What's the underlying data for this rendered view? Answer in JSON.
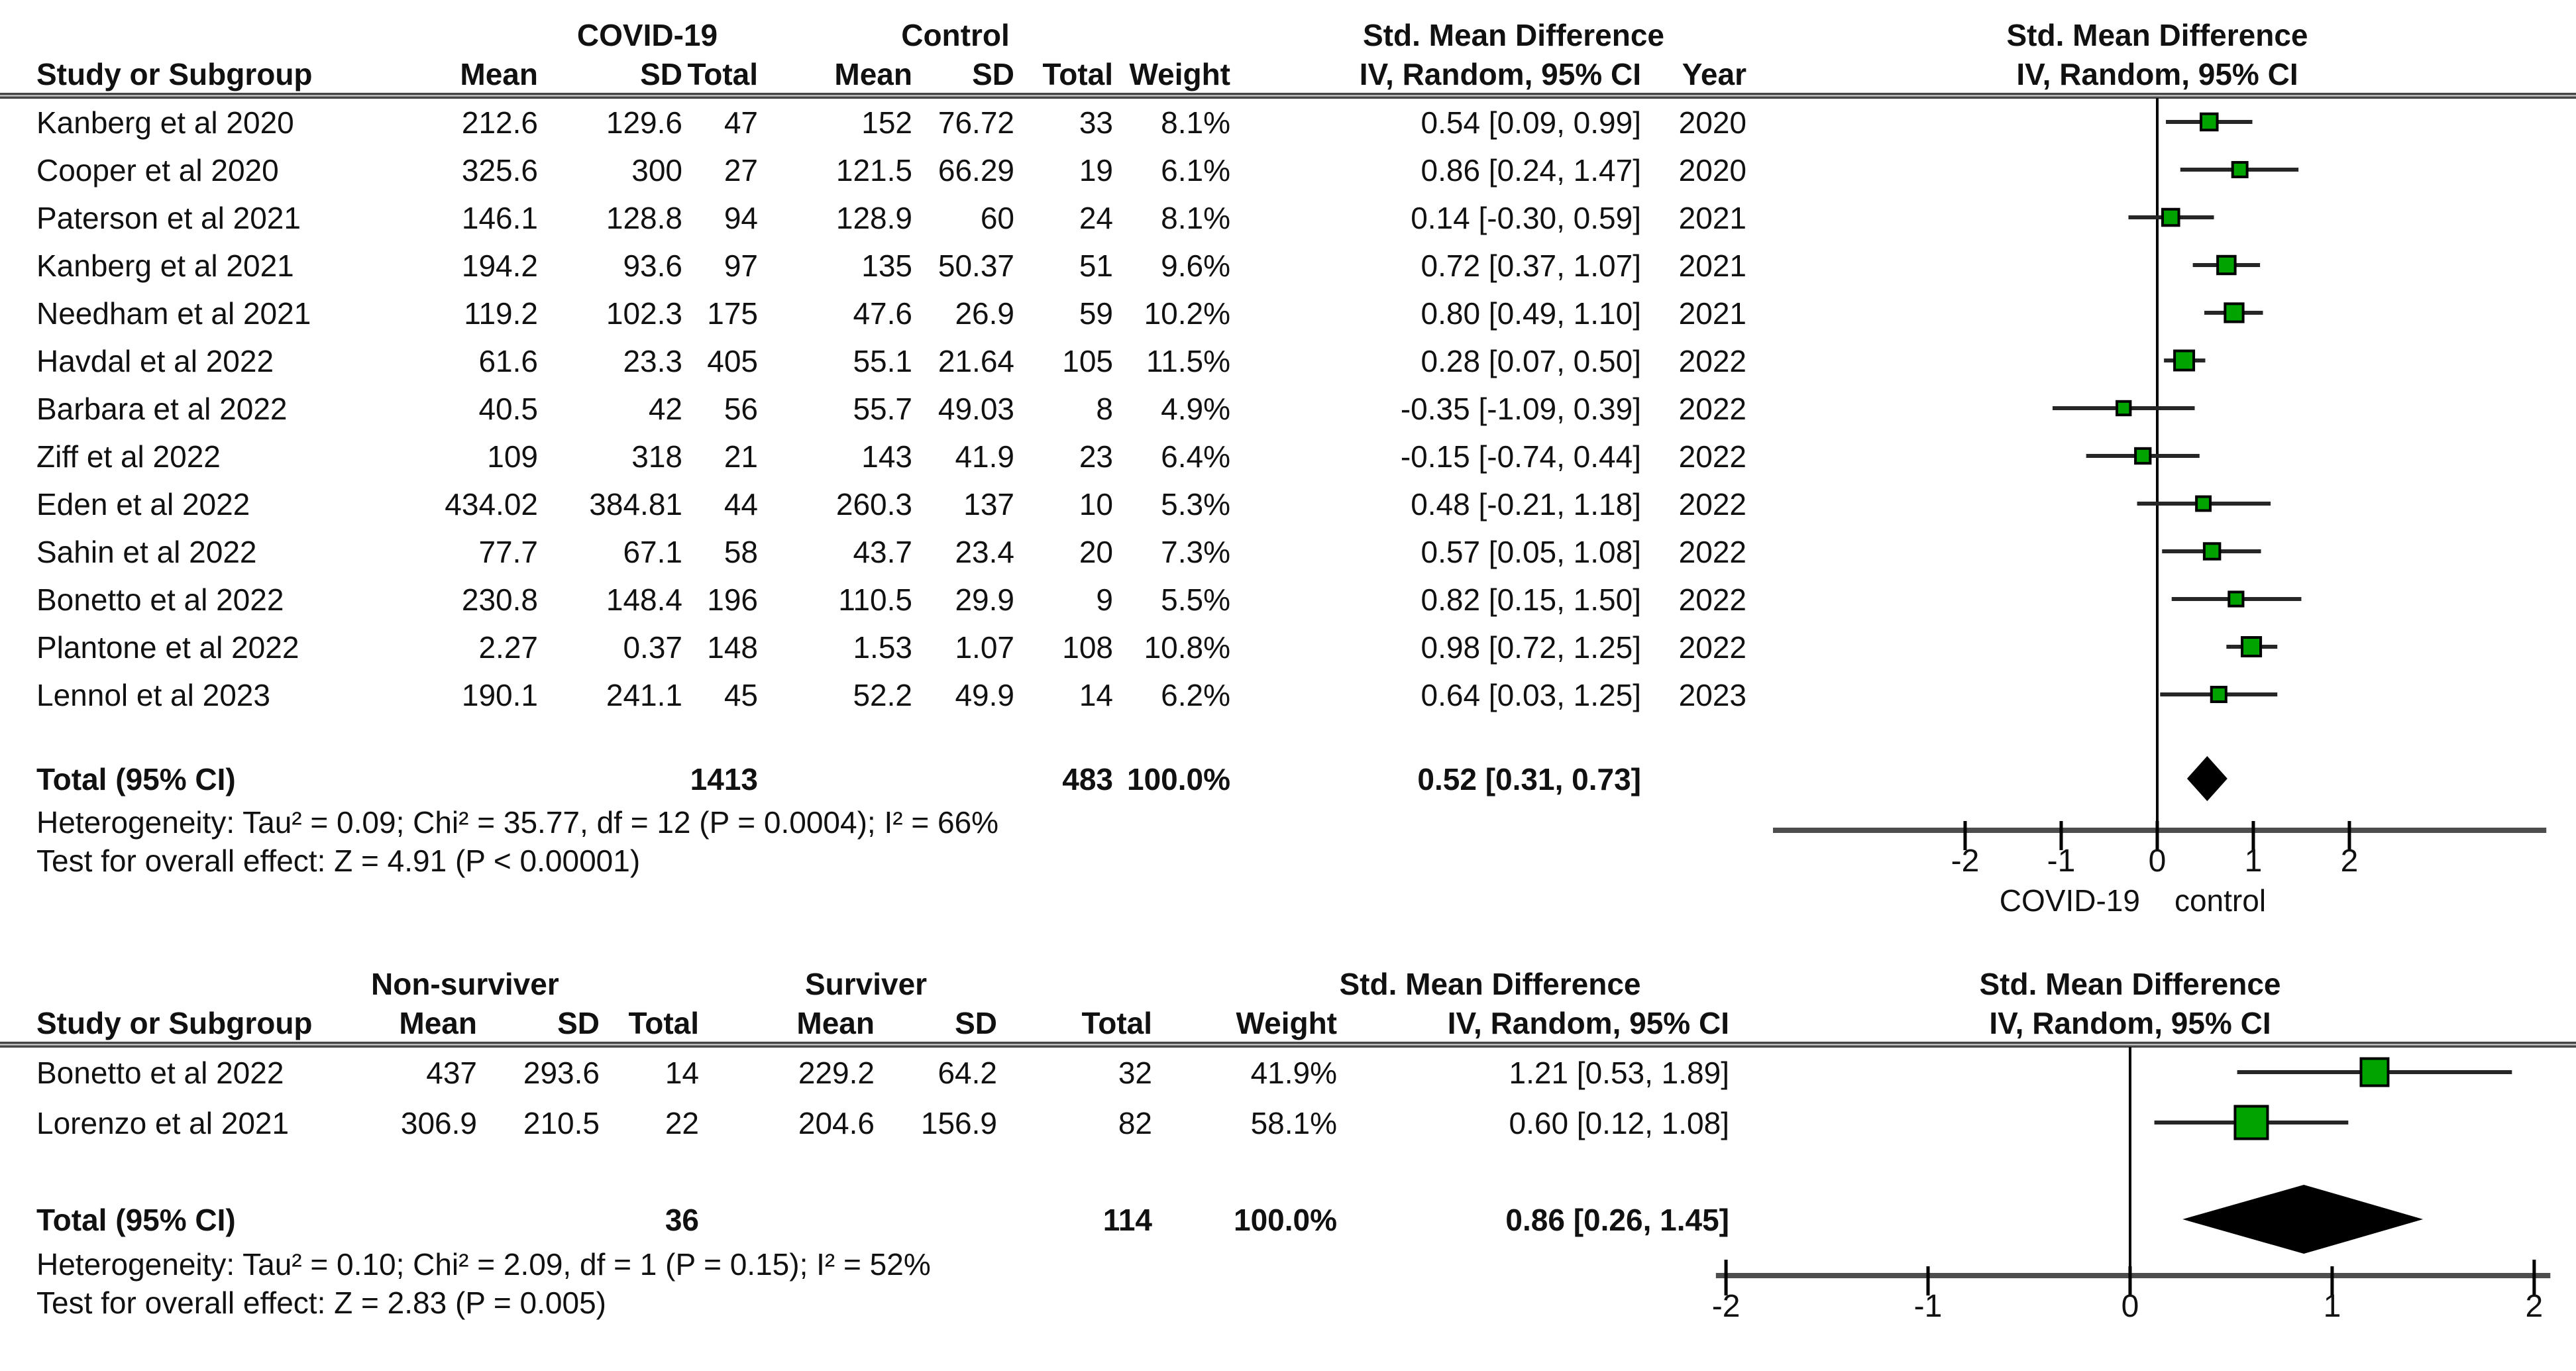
{
  "chart_data": [
    {
      "type": "forest",
      "title": "Std. Mean Difference",
      "subtitle": "IV, Random, 95% CI",
      "effect_title": "Std. Mean Difference",
      "group1": "COVID-19",
      "group2": "Control",
      "columns": [
        "Study or Subgroup",
        "Mean",
        "SD",
        "Total",
        "Mean",
        "SD",
        "Total",
        "Weight",
        "IV, Random, 95% CI",
        "Year"
      ],
      "marker_color": "#00a300",
      "diamond_color": "#000000",
      "studies": [
        {
          "name": "Kanberg et al 2020",
          "mean1": "212.6",
          "sd1": "129.6",
          "n1": "47",
          "mean2": "152",
          "sd2": "76.72",
          "n2": "33",
          "weight": "8.1%",
          "weight_value": 8.1,
          "smd": 0.54,
          "ci_low": 0.09,
          "ci_high": 0.99,
          "ci_text": "0.54 [0.09, 0.99]",
          "year": "2020"
        },
        {
          "name": "Cooper et al 2020",
          "mean1": "325.6",
          "sd1": "300",
          "n1": "27",
          "mean2": "121.5",
          "sd2": "66.29",
          "n2": "19",
          "weight": "6.1%",
          "weight_value": 6.1,
          "smd": 0.86,
          "ci_low": 0.24,
          "ci_high": 1.47,
          "ci_text": "0.86 [0.24, 1.47]",
          "year": "2020"
        },
        {
          "name": "Paterson et al 2021",
          "mean1": "146.1",
          "sd1": "128.8",
          "n1": "94",
          "mean2": "128.9",
          "sd2": "60",
          "n2": "24",
          "weight": "8.1%",
          "weight_value": 8.1,
          "smd": 0.14,
          "ci_low": -0.3,
          "ci_high": 0.59,
          "ci_text": "0.14 [-0.30, 0.59]",
          "year": "2021"
        },
        {
          "name": "Kanberg et al 2021",
          "mean1": "194.2",
          "sd1": "93.6",
          "n1": "97",
          "mean2": "135",
          "sd2": "50.37",
          "n2": "51",
          "weight": "9.6%",
          "weight_value": 9.6,
          "smd": 0.72,
          "ci_low": 0.37,
          "ci_high": 1.07,
          "ci_text": "0.72 [0.37, 1.07]",
          "year": "2021"
        },
        {
          "name": "Needham et al 2021",
          "mean1": "119.2",
          "sd1": "102.3",
          "n1": "175",
          "mean2": "47.6",
          "sd2": "26.9",
          "n2": "59",
          "weight": "10.2%",
          "weight_value": 10.2,
          "smd": 0.8,
          "ci_low": 0.49,
          "ci_high": 1.1,
          "ci_text": "0.80 [0.49, 1.10]",
          "year": "2021"
        },
        {
          "name": "Havdal et al 2022",
          "mean1": "61.6",
          "sd1": "23.3",
          "n1": "405",
          "mean2": "55.1",
          "sd2": "21.64",
          "n2": "105",
          "weight": "11.5%",
          "weight_value": 11.5,
          "smd": 0.28,
          "ci_low": 0.07,
          "ci_high": 0.5,
          "ci_text": "0.28 [0.07, 0.50]",
          "year": "2022"
        },
        {
          "name": "Barbara et al 2022",
          "mean1": "40.5",
          "sd1": "42",
          "n1": "56",
          "mean2": "55.7",
          "sd2": "49.03",
          "n2": "8",
          "weight": "4.9%",
          "weight_value": 4.9,
          "smd": -0.35,
          "ci_low": -1.09,
          "ci_high": 0.39,
          "ci_text": "-0.35 [-1.09, 0.39]",
          "year": "2022"
        },
        {
          "name": "Ziff et al 2022",
          "mean1": "109",
          "sd1": "318",
          "n1": "21",
          "mean2": "143",
          "sd2": "41.9",
          "n2": "23",
          "weight": "6.4%",
          "weight_value": 6.4,
          "smd": -0.15,
          "ci_low": -0.74,
          "ci_high": 0.44,
          "ci_text": "-0.15 [-0.74, 0.44]",
          "year": "2022"
        },
        {
          "name": "Eden et al 2022",
          "mean1": "434.02",
          "sd1": "384.81",
          "n1": "44",
          "mean2": "260.3",
          "sd2": "137",
          "n2": "10",
          "weight": "5.3%",
          "weight_value": 5.3,
          "smd": 0.48,
          "ci_low": -0.21,
          "ci_high": 1.18,
          "ci_text": "0.48 [-0.21, 1.18]",
          "year": "2022"
        },
        {
          "name": "Sahin et al 2022",
          "mean1": "77.7",
          "sd1": "67.1",
          "n1": "58",
          "mean2": "43.7",
          "sd2": "23.4",
          "n2": "20",
          "weight": "7.3%",
          "weight_value": 7.3,
          "smd": 0.57,
          "ci_low": 0.05,
          "ci_high": 1.08,
          "ci_text": "0.57 [0.05, 1.08]",
          "year": "2022"
        },
        {
          "name": "Bonetto et al 2022",
          "mean1": "230.8",
          "sd1": "148.4",
          "n1": "196",
          "mean2": "110.5",
          "sd2": "29.9",
          "n2": "9",
          "weight": "5.5%",
          "weight_value": 5.5,
          "smd": 0.82,
          "ci_low": 0.15,
          "ci_high": 1.5,
          "ci_text": "0.82 [0.15, 1.50]",
          "year": "2022"
        },
        {
          "name": "Plantone et al 2022",
          "mean1": "2.27",
          "sd1": "0.37",
          "n1": "148",
          "mean2": "1.53",
          "sd2": "1.07",
          "n2": "108",
          "weight": "10.8%",
          "weight_value": 10.8,
          "smd": 0.98,
          "ci_low": 0.72,
          "ci_high": 1.25,
          "ci_text": "0.98 [0.72, 1.25]",
          "year": "2022"
        },
        {
          "name": "Lennol et al 2023",
          "mean1": "190.1",
          "sd1": "241.1",
          "n1": "45",
          "mean2": "52.2",
          "sd2": "49.9",
          "n2": "14",
          "weight": "6.2%",
          "weight_value": 6.2,
          "smd": 0.64,
          "ci_low": 0.03,
          "ci_high": 1.25,
          "ci_text": "0.64 [0.03, 1.25]",
          "year": "2023"
        }
      ],
      "total": {
        "label": "Total (95% CI)",
        "n1": "1413",
        "n2": "483",
        "weight": "100.0%",
        "ci_text": "0.52 [0.31, 0.73]",
        "smd": 0.52,
        "ci_low": 0.31,
        "ci_high": 0.73
      },
      "footnotes": [
        "Heterogeneity: Tau² = 0.09; Chi² = 35.77, df = 12 (P = 0.0004); I² = 66%",
        "Test for overall effect: Z = 4.91 (P < 0.00001)"
      ],
      "axis": {
        "ticks": [
          "-2",
          "-1",
          "0",
          "1",
          "2"
        ],
        "tick_values": [
          -2,
          -1,
          0,
          1,
          2
        ],
        "left_label": "COVID-19",
        "right_label": "control"
      }
    },
    {
      "type": "forest",
      "title": "Std. Mean Difference",
      "subtitle": "IV, Random, 95% CI",
      "effect_title": "Std. Mean Difference",
      "group1": "Non-surviver",
      "group2": "Surviver",
      "columns": [
        "Study or Subgroup",
        "Mean",
        "SD",
        "Total",
        "Mean",
        "SD",
        "Total",
        "Weight",
        "IV, Random, 95% CI"
      ],
      "marker_color": "#00a300",
      "diamond_color": "#000000",
      "studies": [
        {
          "name": "Bonetto et al 2022",
          "mean1": "437",
          "sd1": "293.6",
          "n1": "14",
          "mean2": "229.2",
          "sd2": "64.2",
          "n2": "32",
          "weight": "41.9%",
          "weight_value": 41.9,
          "smd": 1.21,
          "ci_low": 0.53,
          "ci_high": 1.89,
          "ci_text": "1.21 [0.53, 1.89]",
          "year": ""
        },
        {
          "name": "Lorenzo et al 2021",
          "mean1": "306.9",
          "sd1": "210.5",
          "n1": "22",
          "mean2": "204.6",
          "sd2": "156.9",
          "n2": "82",
          "weight": "58.1%",
          "weight_value": 58.1,
          "smd": 0.6,
          "ci_low": 0.12,
          "ci_high": 1.08,
          "ci_text": "0.60 [0.12, 1.08]",
          "year": ""
        }
      ],
      "total": {
        "label": "Total (95% CI)",
        "n1": "36",
        "n2": "114",
        "weight": "100.0%",
        "ci_text": "0.86 [0.26, 1.45]",
        "smd": 0.86,
        "ci_low": 0.26,
        "ci_high": 1.45
      },
      "footnotes": [
        "Heterogeneity: Tau² = 0.10; Chi² = 2.09, df = 1 (P = 0.15); I² = 52%",
        "Test for overall effect: Z = 2.83 (P = 0.005)"
      ],
      "axis": {
        "ticks": [
          "-2",
          "-1",
          "0",
          "1",
          "2"
        ],
        "tick_values": [
          -2,
          -1,
          0,
          1,
          2
        ],
        "left_label": "",
        "right_label": ""
      }
    }
  ]
}
